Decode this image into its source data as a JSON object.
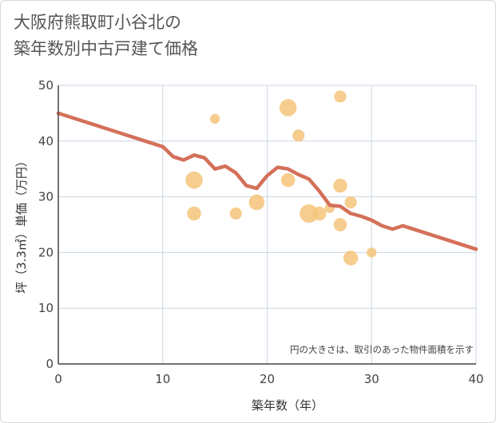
{
  "title_line1": "大阪府熊取町小谷北の",
  "title_line2": "築年数別中古戸建て価格",
  "chart_data": {
    "type": "scatter",
    "title": "大阪府熊取町小谷北の築年数別中古戸建て価格",
    "xlabel": "築年数（年）",
    "ylabel": "坪（3.3㎡）単価（万円）",
    "xlim": [
      0,
      40
    ],
    "ylim": [
      0,
      50
    ],
    "xticks": [
      "0",
      "10",
      "20",
      "30",
      "40"
    ],
    "yticks": [
      "0",
      "10",
      "20",
      "30",
      "40",
      "50"
    ],
    "grid": true,
    "note": "円の大きさは、取引のあった物件面積を示す",
    "colors": {
      "bubble": "#f5c47a",
      "line": "#d4705a",
      "grid": "#c9d6e3",
      "axis": "#444444"
    },
    "scatter_points": [
      {
        "x": 13,
        "y": 33,
        "size": 3
      },
      {
        "x": 13,
        "y": 27,
        "size": 2
      },
      {
        "x": 15,
        "y": 44,
        "size": 1
      },
      {
        "x": 17,
        "y": 27,
        "size": 1.5
      },
      {
        "x": 19,
        "y": 29,
        "size": 2.5
      },
      {
        "x": 22,
        "y": 46,
        "size": 3
      },
      {
        "x": 22,
        "y": 33,
        "size": 2
      },
      {
        "x": 23,
        "y": 41,
        "size": 1.5
      },
      {
        "x": 24,
        "y": 27,
        "size": 3.5
      },
      {
        "x": 25,
        "y": 27,
        "size": 2
      },
      {
        "x": 26,
        "y": 28,
        "size": 1
      },
      {
        "x": 27,
        "y": 48,
        "size": 1.5
      },
      {
        "x": 27,
        "y": 32,
        "size": 2
      },
      {
        "x": 27,
        "y": 25,
        "size": 1.8
      },
      {
        "x": 28,
        "y": 29,
        "size": 1.5
      },
      {
        "x": 28,
        "y": 19,
        "size": 2.2
      },
      {
        "x": 30,
        "y": 20,
        "size": 1
      }
    ],
    "trend_line": {
      "x": [
        0,
        10,
        11,
        12,
        13,
        14,
        15,
        16,
        17,
        18,
        19,
        20,
        21,
        22,
        23,
        24,
        25,
        26,
        27,
        28,
        29,
        30,
        31,
        32,
        33,
        40
      ],
      "y": [
        45,
        39,
        37.2,
        36.6,
        37.5,
        37,
        35,
        35.5,
        34.3,
        32,
        31.5,
        33.8,
        35.3,
        35,
        34,
        33.2,
        31,
        28.5,
        28.3,
        27,
        26.5,
        25.8,
        24.8,
        24.2,
        24.8,
        20.6
      ]
    }
  }
}
